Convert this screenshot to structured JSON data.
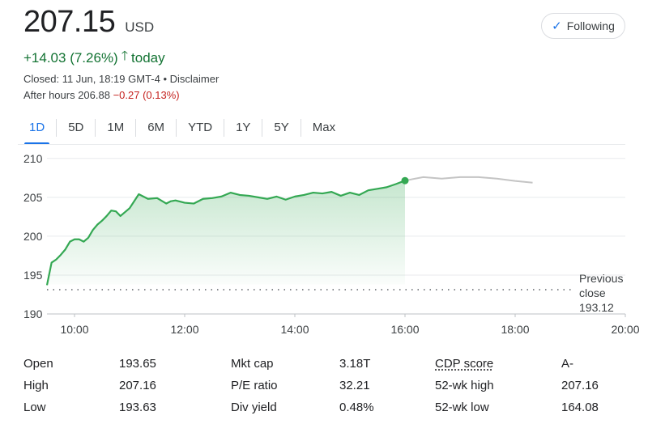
{
  "quote": {
    "price": "207.15",
    "currency": "USD",
    "change": "+14.03 (7.26%)",
    "change_suffix": "today",
    "closed_line": "Closed: 11 Jun, 18:19 GMT-4 • Disclaimer",
    "after_hours_label": "After hours 206.88",
    "after_hours_change": "−0.27 (0.13%)",
    "follow_label": "Following"
  },
  "tabs": [
    "1D",
    "5D",
    "1M",
    "6M",
    "YTD",
    "1Y",
    "5Y",
    "Max"
  ],
  "active_tab": "1D",
  "colors": {
    "positive": "#137333",
    "line": "#34a853",
    "after_hours_line": "#c4c4c4",
    "accent": "#1a73e8",
    "negative": "#c5221f"
  },
  "chart_data": {
    "type": "line",
    "x_ticks": [
      "10:00",
      "12:00",
      "14:00",
      "16:00",
      "18:00",
      "20:00"
    ],
    "y_ticks": [
      190,
      195,
      200,
      205,
      210
    ],
    "ylim": [
      190,
      210.5
    ],
    "xlim": [
      "09:30",
      "20:00"
    ],
    "grid": true,
    "previous_close": {
      "value": 193.12,
      "label": "Previous close",
      "value_label": "193.12"
    },
    "series": [
      {
        "kind": "regular",
        "x": [
          "09:30",
          "09:35",
          "09:40",
          "09:45",
          "09:50",
          "09:55",
          "10:00",
          "10:05",
          "10:10",
          "10:15",
          "10:20",
          "10:25",
          "10:30",
          "10:35",
          "10:40",
          "10:45",
          "10:50",
          "11:00",
          "11:10",
          "11:20",
          "11:30",
          "11:40",
          "11:45",
          "11:50",
          "12:00",
          "12:10",
          "12:20",
          "12:30",
          "12:40",
          "12:50",
          "13:00",
          "13:10",
          "13:20",
          "13:30",
          "13:40",
          "13:50",
          "14:00",
          "14:10",
          "14:20",
          "14:30",
          "14:40",
          "14:50",
          "15:00",
          "15:10",
          "15:20",
          "15:30",
          "15:40",
          "15:50",
          "16:00"
        ],
        "y": [
          193.7,
          196.6,
          197.0,
          197.6,
          198.3,
          199.3,
          199.6,
          199.6,
          199.3,
          199.8,
          200.8,
          201.5,
          202.0,
          202.6,
          203.3,
          203.2,
          202.6,
          203.6,
          205.4,
          204.8,
          204.9,
          204.2,
          204.5,
          204.6,
          204.3,
          204.2,
          204.8,
          204.9,
          205.1,
          205.6,
          205.3,
          205.2,
          205.0,
          204.8,
          205.1,
          204.7,
          205.1,
          205.3,
          205.6,
          205.5,
          205.7,
          205.2,
          205.6,
          205.3,
          205.9,
          206.1,
          206.3,
          206.7,
          207.15
        ]
      },
      {
        "kind": "after_hours",
        "x": [
          "16:00",
          "16:20",
          "16:40",
          "17:00",
          "17:20",
          "17:40",
          "18:00",
          "18:19"
        ],
        "y": [
          207.15,
          207.6,
          207.4,
          207.6,
          207.6,
          207.4,
          207.1,
          206.88
        ]
      }
    ]
  },
  "stats": [
    [
      "Open",
      "193.65",
      "Mkt cap",
      "3.18T",
      "CDP score",
      "A-"
    ],
    [
      "High",
      "207.16",
      "P/E ratio",
      "32.21",
      "52-wk high",
      "207.16"
    ],
    [
      "Low",
      "193.63",
      "Div yield",
      "0.48%",
      "52-wk low",
      "164.08"
    ]
  ]
}
